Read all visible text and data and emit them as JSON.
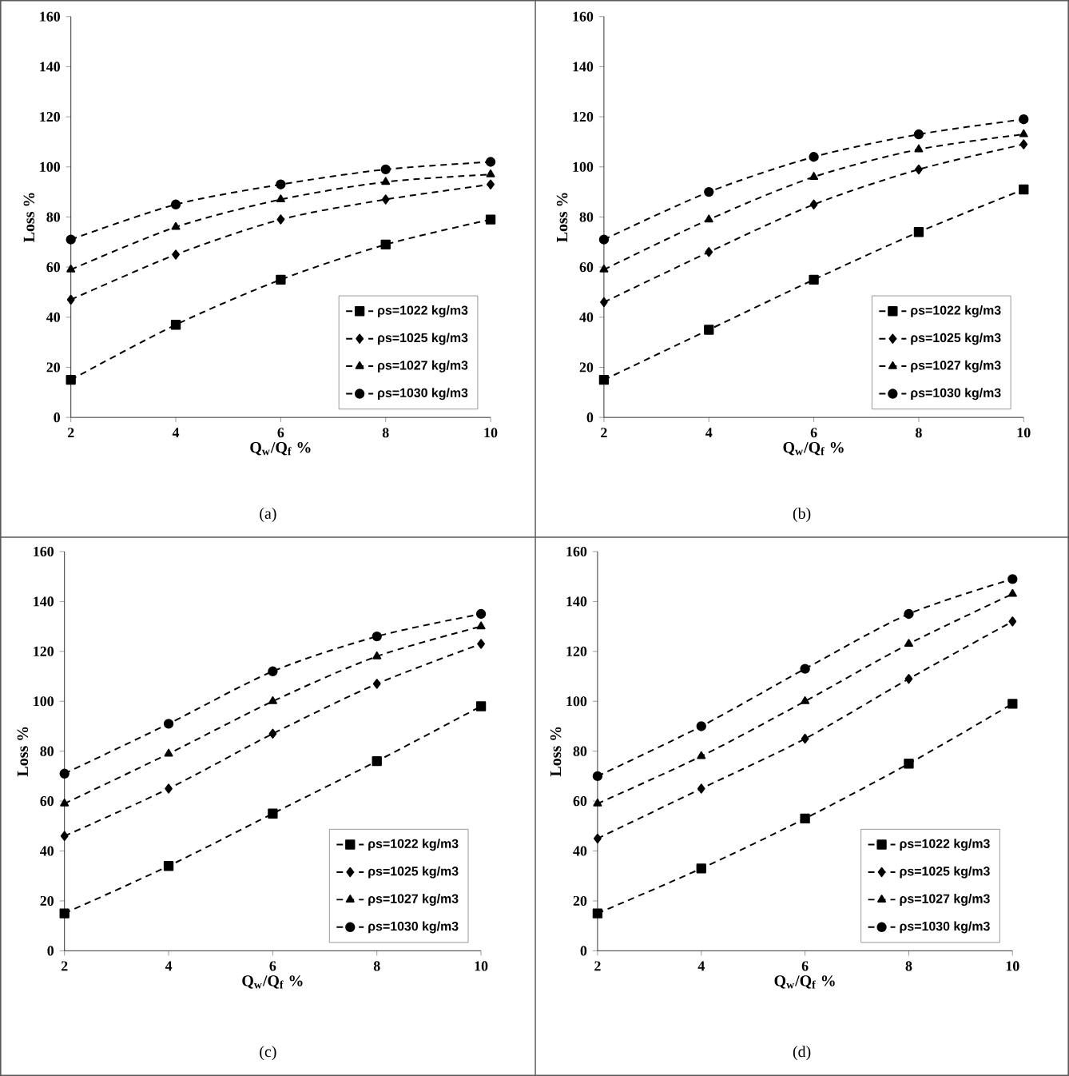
{
  "chart_data": [
    {
      "type": "line",
      "x": [
        2,
        4,
        6,
        8,
        10
      ],
      "xlabel": "Q$_{w}$/Q$_{f}$ %",
      "ylabel": "Loss %",
      "xlim": [
        2,
        10
      ],
      "ylim": [
        0,
        160
      ],
      "xticks": [
        2,
        4,
        6,
        8,
        10
      ],
      "yticks": [
        0,
        20,
        40,
        60,
        80,
        100,
        120,
        140,
        160
      ],
      "legend": "bottom right",
      "line_style": "dashed",
      "annotations": [
        "(a)"
      ],
      "series": [
        {
          "name": "ρs=1022 kg/m3",
          "color": "#000000",
          "marker": "square",
          "values": [
            15,
            37,
            55,
            69,
            79
          ]
        },
        {
          "name": "ρs=1025 kg/m3",
          "color": "#000000",
          "marker": "diamond",
          "values": [
            47,
            65,
            79,
            87,
            93
          ]
        },
        {
          "name": "ρs=1027 kg/m3",
          "color": "#000000",
          "marker": "triangle",
          "values": [
            59,
            76,
            87,
            94,
            97
          ]
        },
        {
          "name": "ρs=1030 kg/m3",
          "color": "#000000",
          "marker": "circle",
          "values": [
            71,
            85,
            93,
            99,
            102
          ]
        }
      ]
    },
    {
      "type": "line",
      "x": [
        2,
        4,
        6,
        8,
        10
      ],
      "xlabel": "Q$_{w}$/Q$_{f}$ %",
      "ylabel": "Loss %",
      "xlim": [
        2,
        10
      ],
      "ylim": [
        0,
        160
      ],
      "xticks": [
        2,
        4,
        6,
        8,
        10
      ],
      "yticks": [
        0,
        20,
        40,
        60,
        80,
        100,
        120,
        140,
        160
      ],
      "legend": "bottom right",
      "line_style": "dashed",
      "annotations": [
        "(b)"
      ],
      "series": [
        {
          "name": "ρs=1022 kg/m3",
          "color": "#000000",
          "marker": "square",
          "values": [
            15,
            35,
            55,
            74,
            91
          ]
        },
        {
          "name": "ρs=1025 kg/m3",
          "color": "#000000",
          "marker": "diamond",
          "values": [
            46,
            66,
            85,
            99,
            109
          ]
        },
        {
          "name": "ρs=1027 kg/m3",
          "color": "#000000",
          "marker": "triangle",
          "values": [
            59,
            79,
            96,
            107,
            113
          ]
        },
        {
          "name": "ρs=1030 kg/m3",
          "color": "#000000",
          "marker": "circle",
          "values": [
            71,
            90,
            104,
            113,
            119
          ]
        }
      ]
    },
    {
      "type": "line",
      "x": [
        2,
        4,
        6,
        8,
        10
      ],
      "xlabel": "Q$_{w}$/Q$_{f}$ %",
      "ylabel": "Loss %",
      "xlim": [
        2,
        10
      ],
      "ylim": [
        0,
        160
      ],
      "xticks": [
        2,
        4,
        6,
        8,
        10
      ],
      "yticks": [
        0,
        20,
        40,
        60,
        80,
        100,
        120,
        140,
        160
      ],
      "legend": "bottom right",
      "line_style": "dashed",
      "annotations": [
        "(c)"
      ],
      "series": [
        {
          "name": "ρs=1022 kg/m3",
          "color": "#000000",
          "marker": "square",
          "values": [
            15,
            34,
            55,
            76,
            98
          ]
        },
        {
          "name": "ρs=1025 kg/m3",
          "color": "#000000",
          "marker": "diamond",
          "values": [
            46,
            65,
            87,
            107,
            123
          ]
        },
        {
          "name": "ρs=1027 kg/m3",
          "color": "#000000",
          "marker": "triangle",
          "values": [
            59,
            79,
            100,
            118,
            130
          ]
        },
        {
          "name": "ρs=1030 kg/m3",
          "color": "#000000",
          "marker": "circle",
          "values": [
            71,
            91,
            112,
            126,
            135
          ]
        }
      ]
    },
    {
      "type": "line",
      "x": [
        2,
        4,
        6,
        8,
        10
      ],
      "xlabel": "Q$_{w}$/Q$_{f}$ %",
      "ylabel": "Loss %",
      "xlim": [
        2,
        10
      ],
      "ylim": [
        0,
        160
      ],
      "xticks": [
        2,
        4,
        6,
        8,
        10
      ],
      "yticks": [
        0,
        20,
        40,
        60,
        80,
        100,
        120,
        140,
        160
      ],
      "legend": "bottom right",
      "line_style": "dashed",
      "annotations": [
        "(d)"
      ],
      "series": [
        {
          "name": "ρs=1022 kg/m3",
          "color": "#000000",
          "marker": "square",
          "values": [
            15,
            33,
            53,
            75,
            99
          ]
        },
        {
          "name": "ρs=1025 kg/m3",
          "color": "#000000",
          "marker": "diamond",
          "values": [
            45,
            65,
            85,
            109,
            132
          ]
        },
        {
          "name": "ρs=1027 kg/m3",
          "color": "#000000",
          "marker": "triangle",
          "values": [
            59,
            78,
            100,
            123,
            143
          ]
        },
        {
          "name": "ρs=1030 kg/m3",
          "color": "#000000",
          "marker": "circle",
          "values": [
            70,
            90,
            113,
            135,
            149
          ]
        }
      ]
    }
  ]
}
